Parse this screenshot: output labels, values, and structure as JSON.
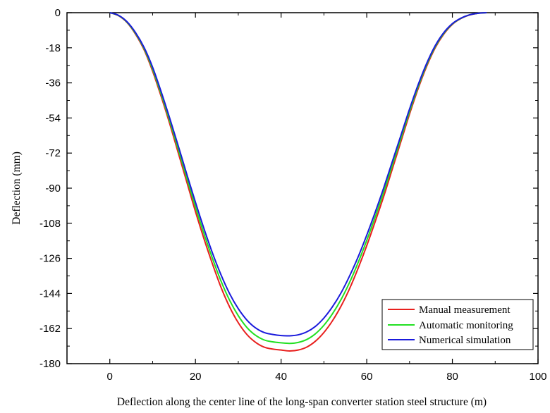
{
  "chart_data": {
    "type": "line",
    "xlabel": "Deflection along the center line of the long-span converter station steel structure (m)",
    "ylabel": "Deflection (mm)",
    "xlim": [
      -10,
      100
    ],
    "ylim": [
      -180,
      0
    ],
    "x_ticks": [
      0,
      20,
      40,
      60,
      80,
      100
    ],
    "y_ticks": [
      0,
      -18,
      -36,
      -54,
      -72,
      -90,
      -108,
      -126,
      -144,
      -162,
      -180
    ],
    "x_tick_labels": [
      "0",
      "20",
      "40",
      "60",
      "80",
      "100"
    ],
    "y_tick_labels": [
      "0",
      "-18",
      "-36",
      "-54",
      "-72",
      "-90",
      "-108",
      "-126",
      "-144",
      "-162",
      "-180"
    ],
    "grid": false,
    "legend_position": "bottom-right",
    "series": [
      {
        "name": "Manual measurement",
        "color": "#e8201e",
        "x": [
          0,
          2,
          4,
          6,
          8,
          10,
          12,
          14,
          16,
          18,
          20,
          22,
          24,
          26,
          28,
          30,
          32,
          34,
          36,
          38,
          40,
          42,
          44,
          46,
          48,
          50,
          52,
          54,
          56,
          58,
          60,
          62,
          64,
          66,
          68,
          70,
          72,
          74,
          76,
          78,
          80,
          82,
          84,
          86,
          88
        ],
        "y": [
          0,
          -1.5,
          -5,
          -11,
          -19,
          -30,
          -43,
          -57,
          -72,
          -87,
          -102,
          -116,
          -129,
          -141,
          -151,
          -159,
          -165,
          -169,
          -171.5,
          -172.5,
          -173,
          -173.5,
          -173,
          -171.5,
          -168.5,
          -164,
          -158,
          -150.5,
          -141.5,
          -131,
          -119.5,
          -107,
          -94,
          -80,
          -66,
          -52,
          -39,
          -27.5,
          -18,
          -11,
          -6,
          -3,
          -1.2,
          -0.3,
          0
        ]
      },
      {
        "name": "Automatic monitoring",
        "color": "#22e022",
        "x": [
          0,
          2,
          4,
          6,
          8,
          10,
          12,
          14,
          16,
          18,
          20,
          22,
          24,
          26,
          28,
          30,
          32,
          34,
          36,
          38,
          40,
          42,
          44,
          46,
          48,
          50,
          52,
          54,
          56,
          58,
          60,
          62,
          64,
          66,
          68,
          70,
          72,
          74,
          76,
          78,
          80,
          82,
          84,
          86,
          88
        ],
        "y": [
          0,
          -1.4,
          -4.8,
          -10.6,
          -18.4,
          -29,
          -41.8,
          -55.6,
          -70.2,
          -85,
          -99.6,
          -113.4,
          -126.2,
          -137.8,
          -147.6,
          -155.4,
          -161.4,
          -165.4,
          -167.8,
          -168.8,
          -169.3,
          -169.6,
          -169.1,
          -167.6,
          -164.7,
          -160.3,
          -154.4,
          -147.1,
          -138.3,
          -128.1,
          -116.8,
          -104.6,
          -91.8,
          -78.1,
          -64.4,
          -50.7,
          -38,
          -26.7,
          -17.4,
          -10.6,
          -5.8,
          -2.9,
          -1.1,
          -0.3,
          0
        ]
      },
      {
        "name": "Numerical simulation",
        "color": "#1a1adc",
        "x": [
          0,
          2,
          4,
          6,
          8,
          10,
          12,
          14,
          16,
          18,
          20,
          22,
          24,
          26,
          28,
          30,
          32,
          34,
          36,
          38,
          40,
          42,
          44,
          46,
          48,
          50,
          52,
          54,
          56,
          58,
          60,
          62,
          64,
          66,
          68,
          70,
          72,
          74,
          76,
          78,
          80,
          82,
          84,
          86,
          88
        ],
        "y": [
          0,
          -1.3,
          -4.6,
          -10.2,
          -17.8,
          -28,
          -40.6,
          -54.2,
          -68.4,
          -83,
          -97.2,
          -110.8,
          -123.4,
          -134.6,
          -144.2,
          -151.8,
          -157.6,
          -161.6,
          -164,
          -165,
          -165.6,
          -165.7,
          -165.2,
          -163.7,
          -160.9,
          -156.6,
          -150.8,
          -143.7,
          -135,
          -125.2,
          -114.1,
          -102.2,
          -89.6,
          -76.2,
          -62.8,
          -49.4,
          -37,
          -26,
          -16.9,
          -10.2,
          -5.6,
          -2.8,
          -1.1,
          -0.3,
          0
        ]
      }
    ]
  }
}
